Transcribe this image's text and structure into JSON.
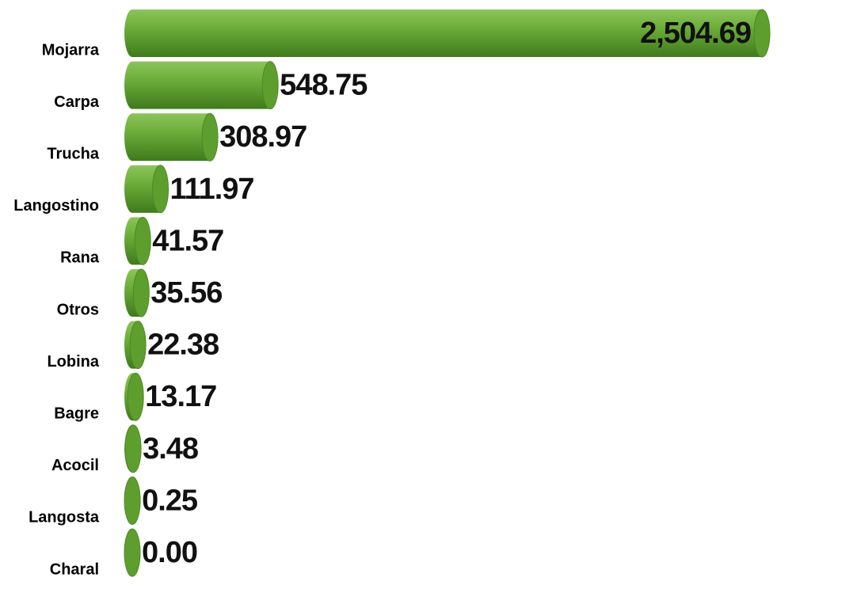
{
  "chart_data": {
    "type": "bar",
    "orientation": "horizontal",
    "categories": [
      "Mojarra",
      "Carpa",
      "Trucha",
      "Langostino",
      "Rana",
      "Otros",
      "Lobina",
      "Bagre",
      "Acocil",
      "Langosta",
      "Charal"
    ],
    "values": [
      2504.69,
      548.75,
      308.97,
      111.97,
      41.57,
      35.56,
      22.38,
      13.17,
      3.48,
      0.25,
      0.0
    ],
    "value_labels": [
      "2,504.69",
      "548.75",
      "308.97",
      "111.97",
      "41.57",
      "35.56",
      "22.38",
      "13.17",
      "3.48",
      "0.25",
      "0.00"
    ],
    "color": "#5e9e2e"
  }
}
